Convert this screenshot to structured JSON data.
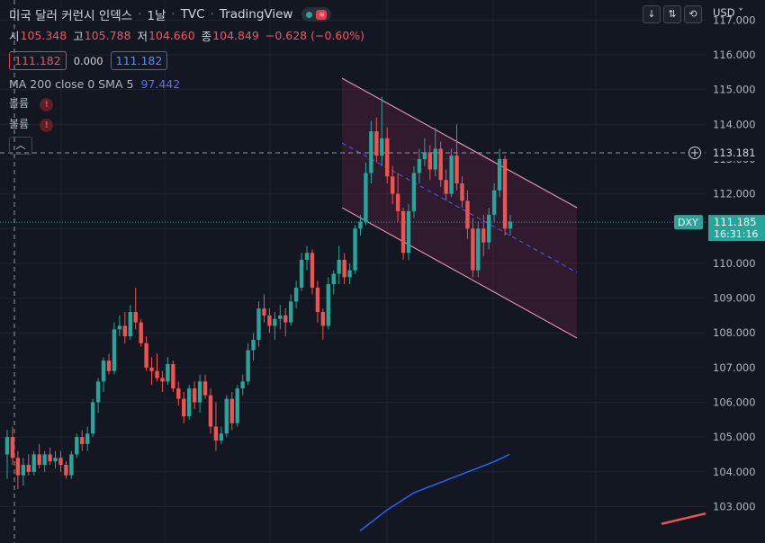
{
  "header": {
    "title": "미국 달러 커런시 인덱스",
    "interval": "1날",
    "source": "TVC",
    "provider": "TradingView",
    "sep": "·"
  },
  "ohlc": {
    "o_label": "시",
    "o": "105.348",
    "h_label": "고",
    "h": "105.788",
    "l_label": "저",
    "l": "104.660",
    "c_label": "종",
    "c": "104.849",
    "change": "−0.628 (−0.60%)"
  },
  "quote": {
    "sell": "111.182",
    "spread": "0.000",
    "buy": "111.182"
  },
  "indicator": {
    "label": "MA 200 close 0 SMA 5",
    "value": "97.442"
  },
  "volume_rows": [
    "볼륨",
    "볼륨"
  ],
  "collapse_icon": "chevron-up-icon",
  "toolbar": {
    "currency": "USD"
  },
  "price_axis": {
    "ticks": [
      "117.000",
      "116.000",
      "115.000",
      "114.000",
      "113.000",
      "112.000",
      "111.000",
      "110.000",
      "109.000",
      "108.000",
      "107.000",
      "106.000",
      "105.000",
      "104.000",
      "103.000"
    ],
    "crosshair_price": "113.181",
    "last_symbol": "DXY",
    "last_price": "111.185",
    "countdown": "16:31:16"
  },
  "colors": {
    "background": "#131722",
    "up": "#26a69a",
    "down": "#ef5350",
    "ma": "#2962ff",
    "channel": "#f8a5c2"
  },
  "chart_data": {
    "type": "candlestick",
    "ylim": [
      102.3,
      117.3
    ],
    "candles": [
      [
        104.5,
        105.2,
        103.8,
        105.0
      ],
      [
        105.0,
        105.3,
        104.2,
        104.4
      ],
      [
        104.4,
        104.6,
        103.5,
        103.9
      ],
      [
        103.9,
        104.4,
        103.6,
        104.2
      ],
      [
        104.2,
        104.5,
        103.9,
        104.0
      ],
      [
        104.0,
        104.6,
        103.9,
        104.5
      ],
      [
        104.5,
        104.8,
        104.1,
        104.2
      ],
      [
        104.2,
        104.6,
        104.0,
        104.5
      ],
      [
        104.5,
        104.7,
        104.2,
        104.3
      ],
      [
        104.3,
        104.6,
        104.1,
        104.4
      ],
      [
        104.4,
        104.6,
        104.0,
        104.2
      ],
      [
        104.2,
        104.3,
        103.8,
        103.9
      ],
      [
        103.9,
        104.6,
        103.8,
        104.5
      ],
      [
        104.5,
        105.1,
        104.4,
        105.0
      ],
      [
        105.0,
        105.2,
        104.6,
        104.8
      ],
      [
        104.8,
        105.3,
        104.6,
        105.1
      ],
      [
        105.1,
        106.1,
        105.0,
        106.0
      ],
      [
        106.0,
        106.7,
        105.7,
        106.6
      ],
      [
        106.6,
        107.3,
        106.3,
        107.2
      ],
      [
        107.2,
        107.4,
        106.8,
        106.9
      ],
      [
        106.9,
        108.3,
        106.8,
        108.1
      ],
      [
        108.1,
        108.5,
        107.9,
        108.2
      ],
      [
        108.2,
        108.6,
        107.7,
        107.9
      ],
      [
        107.9,
        108.8,
        107.8,
        108.6
      ],
      [
        108.6,
        109.3,
        108.1,
        108.3
      ],
      [
        108.3,
        108.4,
        107.6,
        107.7
      ],
      [
        107.7,
        107.9,
        106.9,
        107.0
      ],
      [
        107.0,
        107.3,
        106.5,
        106.9
      ],
      [
        106.9,
        107.4,
        106.6,
        106.7
      ],
      [
        106.7,
        106.9,
        106.3,
        106.6
      ],
      [
        106.6,
        107.3,
        106.5,
        107.1
      ],
      [
        107.1,
        107.2,
        106.3,
        106.4
      ],
      [
        106.4,
        106.6,
        105.9,
        106.1
      ],
      [
        106.1,
        106.3,
        105.4,
        105.6
      ],
      [
        105.6,
        106.5,
        105.5,
        106.4
      ],
      [
        106.4,
        106.6,
        105.8,
        106.0
      ],
      [
        106.0,
        106.8,
        105.7,
        106.6
      ],
      [
        106.6,
        106.8,
        106.1,
        106.2
      ],
      [
        106.2,
        106.4,
        105.1,
        105.3
      ],
      [
        105.3,
        106.0,
        104.6,
        104.9
      ],
      [
        104.9,
        105.3,
        104.8,
        105.1
      ],
      [
        105.1,
        106.2,
        105.0,
        106.1
      ],
      [
        106.1,
        106.3,
        105.2,
        105.4
      ],
      [
        105.4,
        106.5,
        105.3,
        106.4
      ],
      [
        106.4,
        106.8,
        106.2,
        106.6
      ],
      [
        106.6,
        107.7,
        106.5,
        107.5
      ],
      [
        107.5,
        108.0,
        107.2,
        107.8
      ],
      [
        107.8,
        108.9,
        107.6,
        108.7
      ],
      [
        108.7,
        109.1,
        108.3,
        108.5
      ],
      [
        108.5,
        108.7,
        108.0,
        108.2
      ],
      [
        108.2,
        108.6,
        107.8,
        108.4
      ],
      [
        108.4,
        108.8,
        108.1,
        108.5
      ],
      [
        108.5,
        108.7,
        107.9,
        108.3
      ],
      [
        108.3,
        109.1,
        108.2,
        108.9
      ],
      [
        108.9,
        109.5,
        108.7,
        109.3
      ],
      [
        109.3,
        110.3,
        109.2,
        110.1
      ],
      [
        110.1,
        110.5,
        109.8,
        110.3
      ],
      [
        110.3,
        110.4,
        109.1,
        109.3
      ],
      [
        109.3,
        109.5,
        108.3,
        108.6
      ],
      [
        108.6,
        108.7,
        107.8,
        108.2
      ],
      [
        108.2,
        109.6,
        108.1,
        109.4
      ],
      [
        109.4,
        109.8,
        109.1,
        109.7
      ],
      [
        109.7,
        110.5,
        109.4,
        110.1
      ],
      [
        110.1,
        110.3,
        109.4,
        109.6
      ],
      [
        109.6,
        110.0,
        109.4,
        109.8
      ],
      [
        109.8,
        111.1,
        109.7,
        111.0
      ],
      [
        111.0,
        111.4,
        110.8,
        111.2
      ],
      [
        111.2,
        112.9,
        111.1,
        112.6
      ],
      [
        112.6,
        114.1,
        112.3,
        113.8
      ],
      [
        113.8,
        114.2,
        112.9,
        113.1
      ],
      [
        113.1,
        114.8,
        112.8,
        113.6
      ],
      [
        113.6,
        113.9,
        112.3,
        112.5
      ],
      [
        112.5,
        112.8,
        111.7,
        112.0
      ],
      [
        112.0,
        112.6,
        111.2,
        111.5
      ],
      [
        111.5,
        111.6,
        110.1,
        110.3
      ],
      [
        110.3,
        111.7,
        110.1,
        111.5
      ],
      [
        111.5,
        112.8,
        111.3,
        112.6
      ],
      [
        112.6,
        113.3,
        112.3,
        113.0
      ],
      [
        113.0,
        113.6,
        112.8,
        113.2
      ],
      [
        113.2,
        113.4,
        112.4,
        112.7
      ],
      [
        112.7,
        113.9,
        112.5,
        113.3
      ],
      [
        113.3,
        113.5,
        112.2,
        112.4
      ],
      [
        112.4,
        112.7,
        111.8,
        112.0
      ],
      [
        112.0,
        113.3,
        111.9,
        113.1
      ],
      [
        113.1,
        114.0,
        112.1,
        112.3
      ],
      [
        112.3,
        112.5,
        111.6,
        111.8
      ],
      [
        111.8,
        112.1,
        110.7,
        111.0
      ],
      [
        111.0,
        111.3,
        109.6,
        109.8
      ],
      [
        109.8,
        111.2,
        109.6,
        111.0
      ],
      [
        111.0,
        111.4,
        110.2,
        110.6
      ],
      [
        110.6,
        111.6,
        110.4,
        111.4
      ],
      [
        111.4,
        112.3,
        111.2,
        112.1
      ],
      [
        112.1,
        113.3,
        111.9,
        113.0
      ],
      [
        113.0,
        113.1,
        110.8,
        111.0
      ],
      [
        111.0,
        111.4,
        110.8,
        111.2
      ]
    ],
    "ma_line": [
      [
        400,
        102.3
      ],
      [
        430,
        102.9
      ],
      [
        460,
        103.4
      ],
      [
        490,
        103.7
      ],
      [
        520,
        104.0
      ],
      [
        550,
        104.3
      ],
      [
        566,
        104.5
      ]
    ],
    "ma_line_right": [
      [
        735,
        102.5
      ],
      [
        784,
        102.8
      ]
    ]
  }
}
